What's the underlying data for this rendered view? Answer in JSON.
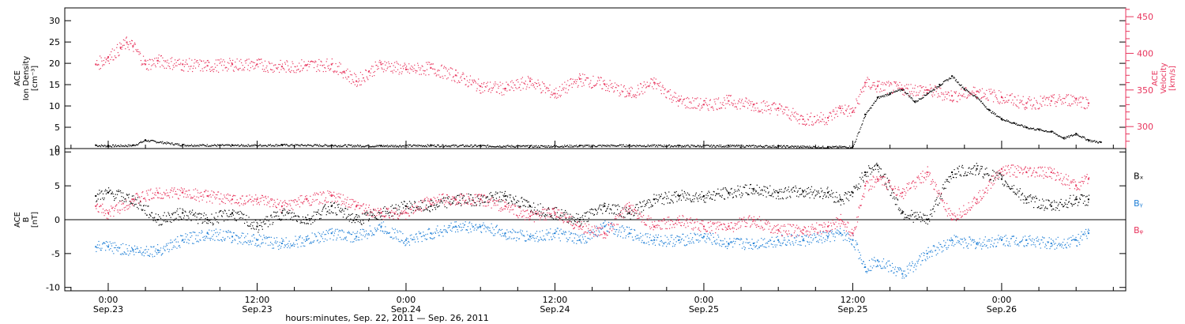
{
  "chart_data": [
    {
      "type": "scatter",
      "panel": "top",
      "ylabel_left": [
        "ACE",
        "Ion Density",
        "[cm⁻³]"
      ],
      "ylabel_right": [
        "ACE",
        "Velocity",
        "[km/s]"
      ],
      "ylim_left": [
        0,
        33
      ],
      "ylim_right": [
        270,
        462
      ],
      "yticks_left": [
        0,
        5,
        10,
        15,
        20,
        25,
        30
      ],
      "yticks_right": [
        300,
        350,
        400,
        450
      ],
      "series": [
        {
          "axis": "left",
          "color": "#000000",
          "x": [
            -1,
            0,
            2,
            3,
            6,
            10,
            14,
            18,
            22,
            26,
            30,
            34,
            38,
            42,
            46,
            50,
            54,
            58,
            60,
            61,
            62,
            63,
            64,
            65,
            66,
            67,
            68,
            69,
            70,
            71,
            72,
            73,
            74,
            75,
            76,
            77,
            78,
            79,
            80
          ],
          "y": [
            0.8,
            0.7,
            0.8,
            2,
            0.9,
            0.8,
            0.9,
            0.8,
            0.7,
            0.8,
            0.7,
            0.6,
            0.7,
            0.8,
            0.7,
            0.7,
            0.6,
            0.4,
            0.5,
            8,
            12,
            13,
            14,
            11,
            13,
            15,
            17,
            14,
            12,
            9,
            7,
            6,
            5,
            4.5,
            4,
            2.5,
            3.5,
            2,
            1.5
          ]
        },
        {
          "axis": "right",
          "color": "#e8365e",
          "x": [
            -1,
            0,
            1,
            1.5,
            2,
            3,
            4,
            6,
            8,
            10,
            12,
            14,
            16,
            18,
            19,
            20,
            21,
            22,
            24,
            26,
            28,
            30,
            32,
            34,
            36,
            38,
            40,
            42,
            44,
            46,
            48,
            50,
            52,
            54,
            56,
            58,
            59,
            60,
            61,
            62,
            64,
            66,
            68,
            70,
            72,
            74,
            76,
            78,
            79
          ],
          "y": [
            385,
            395,
            408,
            415,
            410,
            385,
            390,
            385,
            383,
            385,
            385,
            382,
            384,
            385,
            375,
            362,
            375,
            385,
            378,
            380,
            370,
            355,
            352,
            362,
            345,
            365,
            358,
            345,
            360,
            335,
            330,
            335,
            330,
            325,
            310,
            312,
            325,
            320,
            360,
            355,
            352,
            350,
            342,
            348,
            340,
            332,
            335,
            338,
            332
          ]
        }
      ]
    },
    {
      "type": "scatter",
      "panel": "bottom",
      "ylabel_left": [
        "ACE",
        "B",
        "[nT]"
      ],
      "ylim": [
        -10.5,
        10.5
      ],
      "yticks": [
        -10,
        -5,
        0,
        5,
        10
      ],
      "zero_line": true,
      "series": [
        {
          "name": "Bₓ",
          "color": "#000000",
          "x": [
            -1,
            0,
            2,
            4,
            6,
            8,
            10,
            12,
            14,
            16,
            18,
            20,
            22,
            24,
            26,
            28,
            30,
            32,
            34,
            36,
            38,
            40,
            42,
            44,
            46,
            48,
            50,
            52,
            54,
            56,
            58,
            59,
            60,
            61,
            62,
            64,
            66,
            68,
            70,
            72,
            74,
            76,
            78,
            79
          ],
          "y": [
            3.5,
            4,
            3,
            0,
            1,
            0,
            1,
            -1,
            1,
            0,
            2,
            0,
            1,
            2,
            2,
            3,
            3,
            3.5,
            2,
            1,
            0,
            2,
            1,
            3,
            3.5,
            3.5,
            4,
            4.5,
            4,
            4.2,
            4,
            3,
            4,
            7,
            8,
            1,
            0,
            7,
            7.5,
            6,
            3,
            2,
            3,
            3
          ]
        },
        {
          "name": "Bᵧ",
          "color": "#1f7fd6",
          "x": [
            -1,
            0,
            2,
            4,
            6,
            8,
            10,
            12,
            14,
            16,
            18,
            20,
            22,
            24,
            26,
            28,
            30,
            32,
            34,
            36,
            38,
            40,
            42,
            44,
            46,
            48,
            50,
            52,
            54,
            56,
            58,
            59,
            60,
            61,
            62,
            64,
            66,
            68,
            70,
            72,
            74,
            76,
            78,
            79
          ],
          "y": [
            -4,
            -4,
            -4.5,
            -4.5,
            -3,
            -2,
            -2.5,
            -3,
            -3.5,
            -3,
            -2,
            -2.5,
            -1,
            -3,
            -2,
            -1,
            -1,
            -2,
            -2.5,
            -2,
            -3,
            -1,
            -2,
            -3,
            -3,
            -2.5,
            -3.5,
            -3.5,
            -3,
            -3,
            -2.5,
            -2,
            -3,
            -7,
            -6,
            -8,
            -5,
            -3,
            -3.5,
            -3,
            -3,
            -3.5,
            -3,
            -2
          ]
        },
        {
          "name": "Bᵩ",
          "color": "#e8365e",
          "x": [
            -1,
            0,
            2,
            4,
            6,
            8,
            10,
            12,
            14,
            16,
            18,
            20,
            22,
            24,
            26,
            28,
            30,
            32,
            34,
            36,
            38,
            40,
            42,
            44,
            46,
            48,
            50,
            52,
            54,
            56,
            58,
            59,
            60,
            61,
            62,
            64,
            66,
            68,
            70,
            72,
            74,
            76,
            78,
            79
          ],
          "y": [
            2,
            1,
            3,
            4,
            4,
            3.5,
            3,
            3,
            2,
            3,
            3.5,
            2,
            1,
            1,
            3,
            3,
            3,
            2,
            0.5,
            1,
            -1,
            -2,
            2,
            -1,
            0,
            -1,
            -1,
            0,
            -1.5,
            -1.5,
            -1,
            0,
            -2,
            5,
            6,
            4,
            7,
            0,
            3,
            7.5,
            7,
            7,
            5,
            6
          ]
        }
      ],
      "legend": [
        "Bₓ",
        "Bᵧ",
        "Bᵩ"
      ]
    }
  ],
  "x_axis": {
    "tick_hours": [
      0,
      12,
      24,
      36,
      48,
      60,
      72
    ],
    "tick_time_labels": [
      "0:00",
      "12:00",
      "0:00",
      "12:00",
      "0:00",
      "12:00",
      "0:00"
    ],
    "tick_date_labels": [
      "Sep.23",
      "Sep.23",
      "Sep.24",
      "Sep.24",
      "Sep.25",
      "Sep.25",
      "Sep.26"
    ],
    "xlabel": "hours:minutes, Sep. 22, 2011 — Sep. 26, 2011"
  },
  "colors": {
    "black": "#000000",
    "blue": "#1f7fd6",
    "pink": "#e8365e"
  }
}
